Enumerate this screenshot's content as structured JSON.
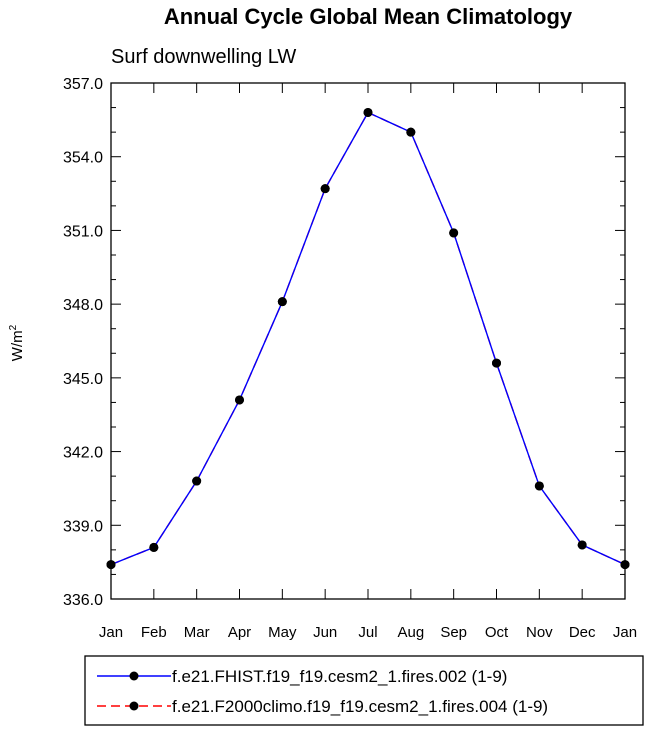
{
  "chart_data": {
    "type": "line",
    "title": "Annual Cycle Global Mean Climatology",
    "subtitle": "Surf downwelling LW",
    "ylabel": "W/m",
    "ylabel_superscript": "2",
    "xlabel": "",
    "categories": [
      "Jan",
      "Feb",
      "Mar",
      "Apr",
      "May",
      "Jun",
      "Jul",
      "Aug",
      "Sep",
      "Oct",
      "Nov",
      "Dec",
      "Jan"
    ],
    "ylim": [
      336.0,
      357.0
    ],
    "yticks": [
      "336.0",
      "339.0",
      "342.0",
      "345.0",
      "348.0",
      "351.0",
      "354.0",
      "357.0"
    ],
    "yminor_step": 1.0,
    "grid": false,
    "legend_position": "bottom",
    "series": [
      {
        "name": "f.e21.FHIST.f19_f19.cesm2_1.fires.002 (1-9)",
        "color": "#0000ff",
        "line_style": "solid",
        "marker": "filled-circle",
        "values": [
          337.4,
          338.1,
          340.8,
          344.1,
          348.1,
          352.7,
          355.8,
          355.0,
          350.9,
          345.6,
          340.6,
          338.2,
          337.4
        ]
      },
      {
        "name": "f.e21.F2000climo.f19_f19.cesm2_1.fires.004 (1-9)",
        "color": "#ff0000",
        "line_style": "dashed",
        "marker": "filled-circle",
        "values": [
          337.4,
          338.1,
          340.8,
          344.1,
          348.1,
          352.7,
          355.8,
          355.0,
          350.9,
          345.6,
          340.6,
          338.2,
          337.4
        ]
      }
    ]
  }
}
